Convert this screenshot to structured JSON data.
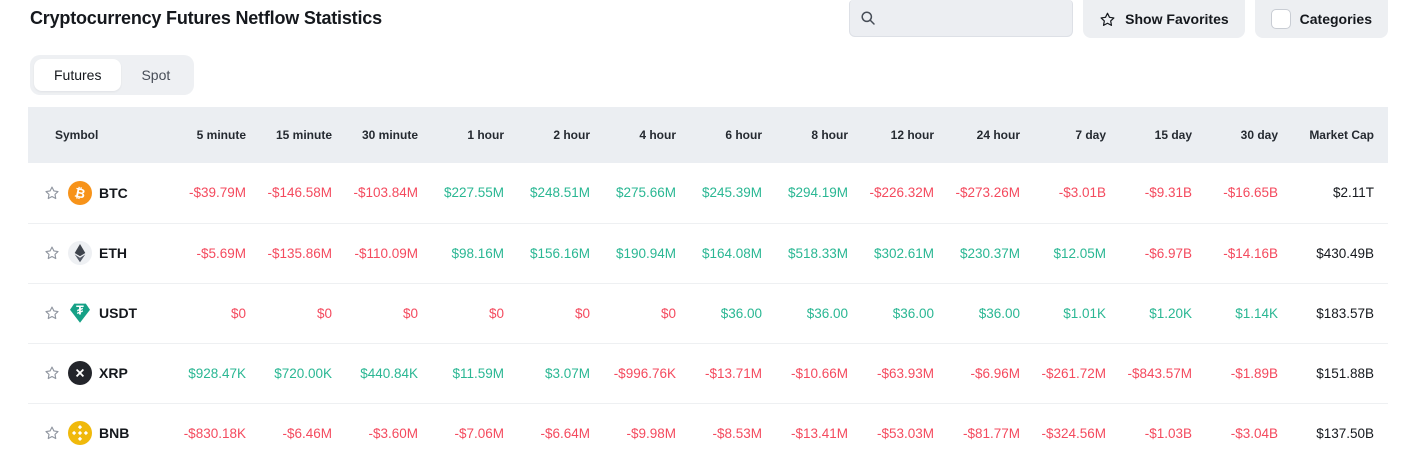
{
  "page": {
    "title": "Cryptocurrency Futures Netflow Statistics"
  },
  "controls": {
    "search_placeholder": "",
    "show_favorites_label": "Show Favorites",
    "categories_label": "Categories"
  },
  "tabs": [
    {
      "label": "Futures",
      "active": true
    },
    {
      "label": "Spot",
      "active": false
    }
  ],
  "colors": {
    "positive": "#2ab793",
    "negative": "#f44a5e"
  },
  "table": {
    "columns": [
      "Symbol",
      "5 minute",
      "15 minute",
      "30 minute",
      "1 hour",
      "2 hour",
      "4 hour",
      "6 hour",
      "8 hour",
      "12 hour",
      "24 hour",
      "7 day",
      "15 day",
      "30 day",
      "Market Cap"
    ],
    "rows": [
      {
        "symbol": "BTC",
        "icon": "btc-icon",
        "values": [
          {
            "text": "-$39.79M",
            "color": "neg"
          },
          {
            "text": "-$146.58M",
            "color": "neg"
          },
          {
            "text": "-$103.84M",
            "color": "neg"
          },
          {
            "text": "$227.55M",
            "color": "pos"
          },
          {
            "text": "$248.51M",
            "color": "pos"
          },
          {
            "text": "$275.66M",
            "color": "pos"
          },
          {
            "text": "$245.39M",
            "color": "pos"
          },
          {
            "text": "$294.19M",
            "color": "pos"
          },
          {
            "text": "-$226.32M",
            "color": "neg"
          },
          {
            "text": "-$273.26M",
            "color": "neg"
          },
          {
            "text": "-$3.01B",
            "color": "neg"
          },
          {
            "text": "-$9.31B",
            "color": "neg"
          },
          {
            "text": "-$16.65B",
            "color": "neg"
          }
        ],
        "market_cap": "$2.11T"
      },
      {
        "symbol": "ETH",
        "icon": "eth-icon",
        "values": [
          {
            "text": "-$5.69M",
            "color": "neg"
          },
          {
            "text": "-$135.86M",
            "color": "neg"
          },
          {
            "text": "-$110.09M",
            "color": "neg"
          },
          {
            "text": "$98.16M",
            "color": "pos"
          },
          {
            "text": "$156.16M",
            "color": "pos"
          },
          {
            "text": "$190.94M",
            "color": "pos"
          },
          {
            "text": "$164.08M",
            "color": "pos"
          },
          {
            "text": "$518.33M",
            "color": "pos"
          },
          {
            "text": "$302.61M",
            "color": "pos"
          },
          {
            "text": "$230.37M",
            "color": "pos"
          },
          {
            "text": "$12.05M",
            "color": "pos"
          },
          {
            "text": "-$6.97B",
            "color": "neg"
          },
          {
            "text": "-$14.16B",
            "color": "neg"
          }
        ],
        "market_cap": "$430.49B"
      },
      {
        "symbol": "USDT",
        "icon": "usdt-icon",
        "values": [
          {
            "text": "$0",
            "color": "neg"
          },
          {
            "text": "$0",
            "color": "neg"
          },
          {
            "text": "$0",
            "color": "neg"
          },
          {
            "text": "$0",
            "color": "neg"
          },
          {
            "text": "$0",
            "color": "neg"
          },
          {
            "text": "$0",
            "color": "neg"
          },
          {
            "text": "$36.00",
            "color": "pos"
          },
          {
            "text": "$36.00",
            "color": "pos"
          },
          {
            "text": "$36.00",
            "color": "pos"
          },
          {
            "text": "$36.00",
            "color": "pos"
          },
          {
            "text": "$1.01K",
            "color": "pos"
          },
          {
            "text": "$1.20K",
            "color": "pos"
          },
          {
            "text": "$1.14K",
            "color": "pos"
          }
        ],
        "market_cap": "$183.57B"
      },
      {
        "symbol": "XRP",
        "icon": "xrp-icon",
        "values": [
          {
            "text": "$928.47K",
            "color": "pos"
          },
          {
            "text": "$720.00K",
            "color": "pos"
          },
          {
            "text": "$440.84K",
            "color": "pos"
          },
          {
            "text": "$11.59M",
            "color": "pos"
          },
          {
            "text": "$3.07M",
            "color": "pos"
          },
          {
            "text": "-$996.76K",
            "color": "neg"
          },
          {
            "text": "-$13.71M",
            "color": "neg"
          },
          {
            "text": "-$10.66M",
            "color": "neg"
          },
          {
            "text": "-$63.93M",
            "color": "neg"
          },
          {
            "text": "-$6.96M",
            "color": "neg"
          },
          {
            "text": "-$261.72M",
            "color": "neg"
          },
          {
            "text": "-$843.57M",
            "color": "neg"
          },
          {
            "text": "-$1.89B",
            "color": "neg"
          }
        ],
        "market_cap": "$151.88B"
      },
      {
        "symbol": "BNB",
        "icon": "bnb-icon",
        "values": [
          {
            "text": "-$830.18K",
            "color": "neg"
          },
          {
            "text": "-$6.46M",
            "color": "neg"
          },
          {
            "text": "-$3.60M",
            "color": "neg"
          },
          {
            "text": "-$7.06M",
            "color": "neg"
          },
          {
            "text": "-$6.64M",
            "color": "neg"
          },
          {
            "text": "-$9.98M",
            "color": "neg"
          },
          {
            "text": "-$8.53M",
            "color": "neg"
          },
          {
            "text": "-$13.41M",
            "color": "neg"
          },
          {
            "text": "-$53.03M",
            "color": "neg"
          },
          {
            "text": "-$81.77M",
            "color": "neg"
          },
          {
            "text": "-$324.56M",
            "color": "neg"
          },
          {
            "text": "-$1.03B",
            "color": "neg"
          },
          {
            "text": "-$3.04B",
            "color": "neg"
          }
        ],
        "market_cap": "$137.50B"
      }
    ]
  }
}
